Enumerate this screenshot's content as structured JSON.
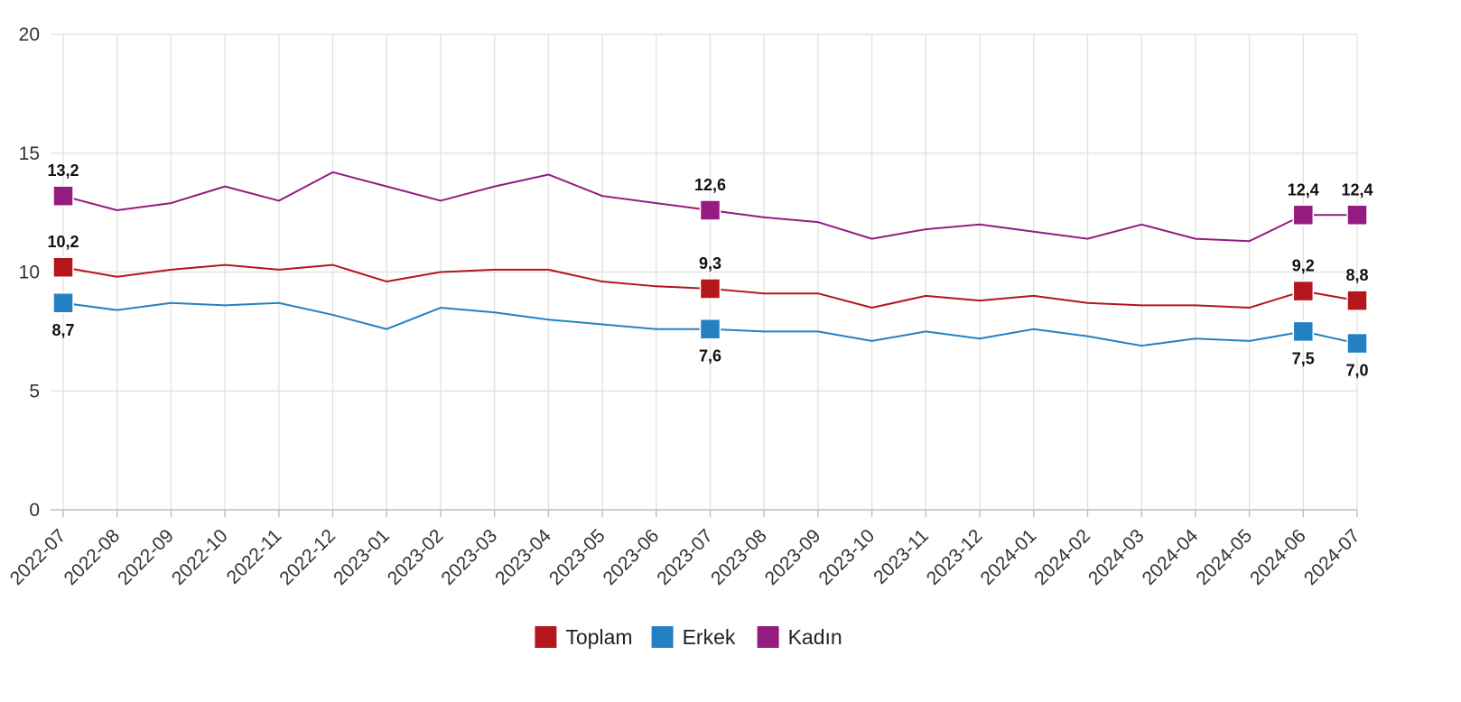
{
  "chart_data": {
    "type": "line",
    "title": "",
    "xlabel": "",
    "ylabel": "",
    "ylim": [
      0,
      20
    ],
    "y_ticks": [
      "0",
      "5",
      "10",
      "15",
      "20"
    ],
    "grid": true,
    "legend_position": "bottom-center",
    "x": [
      "2022-07",
      "2022-08",
      "2022-09",
      "2022-10",
      "2022-11",
      "2022-12",
      "2023-01",
      "2023-02",
      "2023-03",
      "2023-04",
      "2023-05",
      "2023-06",
      "2023-07",
      "2023-08",
      "2023-09",
      "2023-10",
      "2023-11",
      "2023-12",
      "2024-01",
      "2024-02",
      "2024-03",
      "2024-04",
      "2024-05",
      "2024-06",
      "2024-07"
    ],
    "series": [
      {
        "name": "Toplam",
        "color": "#b3161b",
        "values": [
          10.2,
          9.8,
          10.1,
          10.3,
          10.1,
          10.3,
          9.6,
          10.0,
          10.1,
          10.1,
          9.6,
          9.4,
          9.3,
          9.1,
          9.1,
          8.5,
          9.0,
          8.8,
          9.0,
          8.7,
          8.6,
          8.6,
          8.5,
          9.2,
          8.8
        ],
        "marked_indices": [
          0,
          12,
          23,
          24
        ],
        "labels": [
          {
            "index": 0,
            "text": "10,2",
            "position": "above"
          },
          {
            "index": 12,
            "text": "9,3",
            "position": "above"
          },
          {
            "index": 23,
            "text": "9,2",
            "position": "above"
          },
          {
            "index": 24,
            "text": "8,8",
            "position": "above"
          }
        ]
      },
      {
        "name": "Erkek",
        "color": "#2580c3",
        "values": [
          8.7,
          8.4,
          8.7,
          8.6,
          8.7,
          8.2,
          7.6,
          8.5,
          8.3,
          8.0,
          7.8,
          7.6,
          7.6,
          7.5,
          7.5,
          7.1,
          7.5,
          7.2,
          7.6,
          7.3,
          6.9,
          7.2,
          7.1,
          7.5,
          7.0
        ],
        "marked_indices": [
          0,
          12,
          23,
          24
        ],
        "labels": [
          {
            "index": 0,
            "text": "8,7",
            "position": "below"
          },
          {
            "index": 12,
            "text": "7,6",
            "position": "below"
          },
          {
            "index": 23,
            "text": "7,5",
            "position": "below"
          },
          {
            "index": 24,
            "text": "7,0",
            "position": "below"
          }
        ]
      },
      {
        "name": "Kadın",
        "color": "#951b81",
        "values": [
          13.2,
          12.6,
          12.9,
          13.6,
          13.0,
          14.2,
          13.6,
          13.0,
          13.6,
          14.1,
          13.2,
          12.9,
          12.6,
          12.3,
          12.1,
          11.4,
          11.8,
          12.0,
          11.7,
          11.4,
          12.0,
          11.4,
          11.3,
          12.4,
          12.4
        ],
        "marked_indices": [
          0,
          12,
          23,
          24
        ],
        "labels": [
          {
            "index": 0,
            "text": "13,2",
            "position": "above"
          },
          {
            "index": 12,
            "text": "12,6",
            "position": "above"
          },
          {
            "index": 23,
            "text": "12,4",
            "position": "above"
          },
          {
            "index": 24,
            "text": "12,4",
            "position": "above"
          }
        ]
      }
    ]
  }
}
